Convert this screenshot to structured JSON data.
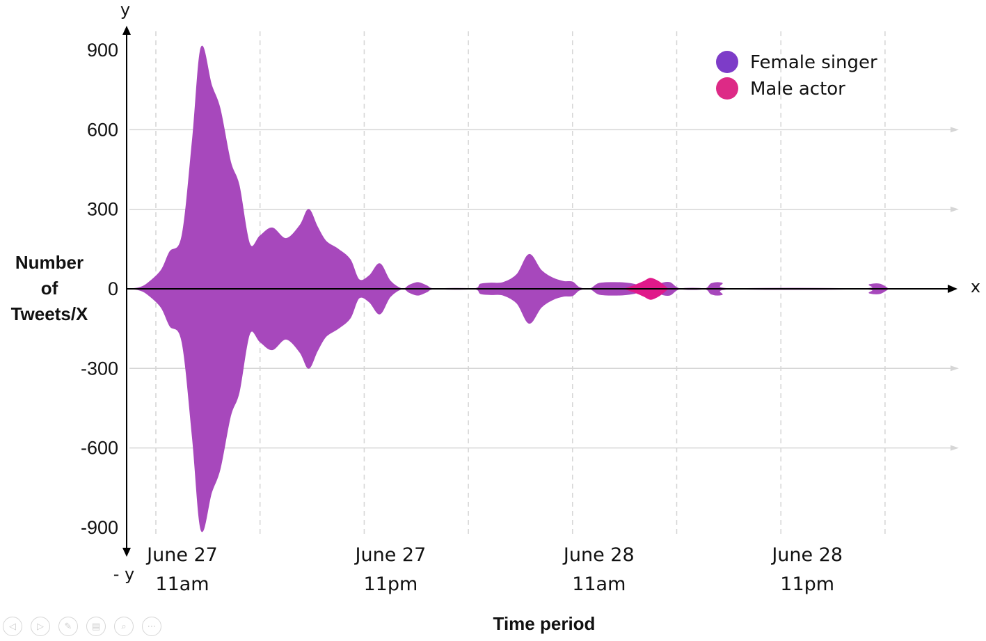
{
  "chart_data": {
    "type": "area",
    "style": "streamgraph (mirrored above and below the x axis)",
    "xlabel": "Time period",
    "ylabel": "Number of Tweets/X",
    "x_axis_letter": "x",
    "y_axis_top_letter": "y",
    "y_axis_bottom_letter": "- y",
    "ylim": [
      -1000,
      1000
    ],
    "y_ticks": [
      "900",
      "600",
      "300",
      "0",
      "-300",
      "-600",
      "-900"
    ],
    "y_tick_values": [
      900,
      600,
      300,
      0,
      -300,
      -600,
      -900
    ],
    "categories": [
      {
        "line1": "June 27",
        "line2": "11am",
        "hour": 0
      },
      {
        "line1": "June 27",
        "line2": "11pm",
        "hour": 12
      },
      {
        "line1": "June 28",
        "line2": "11am",
        "hour": 24
      },
      {
        "line1": "June 28",
        "line2": "11pm",
        "hour": 36
      }
    ],
    "xlim_hours": [
      -1.5,
      44
    ],
    "grid": true,
    "legend_position": "top-right",
    "series": [
      {
        "name": "Female singer",
        "legend_color": "#7d3cc8",
        "fill_color": "#a748bc",
        "points": [
          [
            -1.6,
            0
          ],
          [
            -1.0,
            4
          ],
          [
            -0.5,
            20
          ],
          [
            0.3,
            70
          ],
          [
            0.8,
            140
          ],
          [
            1.5,
            200
          ],
          [
            2.1,
            560
          ],
          [
            2.6,
            910
          ],
          [
            3.2,
            770
          ],
          [
            3.7,
            680
          ],
          [
            4.3,
            480
          ],
          [
            4.8,
            390
          ],
          [
            5.4,
            170
          ],
          [
            6.0,
            200
          ],
          [
            6.7,
            230
          ],
          [
            7.5,
            190
          ],
          [
            8.3,
            240
          ],
          [
            8.8,
            300
          ],
          [
            9.3,
            235
          ],
          [
            9.8,
            180
          ],
          [
            10.5,
            150
          ],
          [
            11.2,
            110
          ],
          [
            11.7,
            35
          ],
          [
            12.3,
            50
          ],
          [
            12.9,
            95
          ],
          [
            13.5,
            30
          ],
          [
            14.2,
            0
          ],
          [
            14.6,
            14
          ],
          [
            15.1,
            24
          ],
          [
            15.6,
            12
          ],
          [
            16.1,
            0
          ],
          [
            18.3,
            0
          ],
          [
            18.7,
            18
          ],
          [
            19.3,
            22
          ],
          [
            20.0,
            24
          ],
          [
            20.8,
            55
          ],
          [
            21.5,
            130
          ],
          [
            22.2,
            70
          ],
          [
            22.9,
            40
          ],
          [
            23.5,
            28
          ],
          [
            24.0,
            26
          ],
          [
            24.4,
            5
          ],
          [
            25.0,
            0
          ],
          [
            25.5,
            20
          ],
          [
            26.3,
            24
          ],
          [
            27.1,
            22
          ],
          [
            27.7,
            15
          ],
          [
            28.2,
            0
          ],
          [
            28.6,
            0
          ],
          [
            29.0,
            18
          ],
          [
            29.6,
            24
          ],
          [
            30.2,
            0
          ],
          [
            31.6,
            0
          ],
          [
            32.0,
            20
          ],
          [
            32.6,
            22
          ],
          [
            33.2,
            0
          ],
          [
            40.6,
            0
          ],
          [
            41.1,
            16
          ],
          [
            41.7,
            18
          ],
          [
            42.2,
            0
          ]
        ]
      },
      {
        "name": "Male actor",
        "legend_color": "#dd2a86",
        "fill_color": "#e0198a",
        "points": [
          [
            27.0,
            0
          ],
          [
            27.6,
            14
          ],
          [
            28.1,
            28
          ],
          [
            28.5,
            40
          ],
          [
            29.0,
            26
          ],
          [
            29.5,
            0
          ]
        ]
      }
    ]
  },
  "viewer_controls": [
    "back-icon",
    "play-icon",
    "pen-icon",
    "slides-icon",
    "zoom-icon",
    "more-icon"
  ]
}
